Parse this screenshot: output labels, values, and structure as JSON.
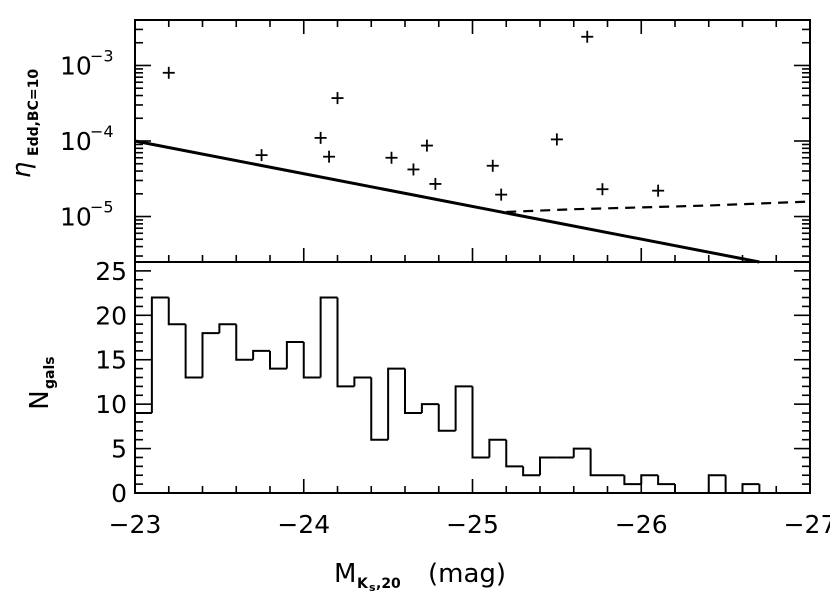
{
  "chart_data": [
    {
      "type": "scatter",
      "panel": "top",
      "yscale": "log",
      "xlim": [
        -23,
        -27
      ],
      "ylim": [
        2.5e-06,
        0.004
      ],
      "ylabel": {
        "main": "η",
        "sub": "Edd,BC=10"
      },
      "yticks": [
        {
          "value": 0.001,
          "base": "10",
          "exp": "−3"
        },
        {
          "value": 0.0001,
          "base": "10",
          "exp": "−4"
        },
        {
          "value": 1e-05,
          "base": "10",
          "exp": "−5"
        }
      ],
      "points": [
        {
          "x": -23.2,
          "y": 0.0008
        },
        {
          "x": -23.75,
          "y": 6.5e-05
        },
        {
          "x": -24.1,
          "y": 0.00011
        },
        {
          "x": -24.15,
          "y": 6.2e-05
        },
        {
          "x": -24.2,
          "y": 0.00037
        },
        {
          "x": -24.52,
          "y": 6e-05
        },
        {
          "x": -24.65,
          "y": 4.2e-05
        },
        {
          "x": -24.73,
          "y": 8.7e-05
        },
        {
          "x": -24.78,
          "y": 2.7e-05
        },
        {
          "x": -25.12,
          "y": 4.7e-05
        },
        {
          "x": -25.17,
          "y": 1.95e-05
        },
        {
          "x": -25.5,
          "y": 0.000105
        },
        {
          "x": -25.68,
          "y": 0.0024
        },
        {
          "x": -25.77,
          "y": 2.3e-05
        },
        {
          "x": -26.1,
          "y": 2.2e-05
        }
      ],
      "lines": [
        {
          "name": "solid",
          "style": "solid",
          "x": [
            -23,
            -26.7
          ],
          "y": [
            0.0001,
            2.5e-06
          ]
        },
        {
          "name": "dashed",
          "style": "dashed",
          "x": [
            -25.2,
            -25.6,
            -26,
            -26.4,
            -27
          ],
          "y": [
            1.15e-05,
            1.25e-05,
            1.32e-05,
            1.4e-05,
            1.58e-05
          ]
        }
      ]
    },
    {
      "type": "histogram",
      "panel": "bottom",
      "xlabel": {
        "main": "M",
        "sub": "K",
        "subsub": "s",
        "tail": ",20",
        "unit": "(mag)"
      },
      "ylabel": {
        "main": "N",
        "sub": "gals"
      },
      "ylim": [
        0,
        26
      ],
      "xticks": [
        "−23",
        "−24",
        "−25",
        "−26",
        "−27"
      ],
      "xtick_values": [
        -23,
        -24,
        -25,
        -26,
        -27
      ],
      "yticks": [
        "0",
        "5",
        "10",
        "15",
        "20",
        "25"
      ],
      "ytick_values": [
        0,
        5,
        10,
        15,
        20,
        25
      ],
      "bin_start": -23,
      "bin_width": -0.1,
      "counts": [
        9,
        22,
        19,
        13,
        18,
        19,
        15,
        16,
        14,
        17,
        13,
        22,
        12,
        13,
        6,
        14,
        9,
        10,
        7,
        12,
        4,
        6,
        3,
        2,
        4,
        4,
        5,
        2,
        2,
        1,
        2,
        1,
        0,
        0,
        2,
        0,
        1,
        0,
        0,
        0
      ]
    }
  ]
}
